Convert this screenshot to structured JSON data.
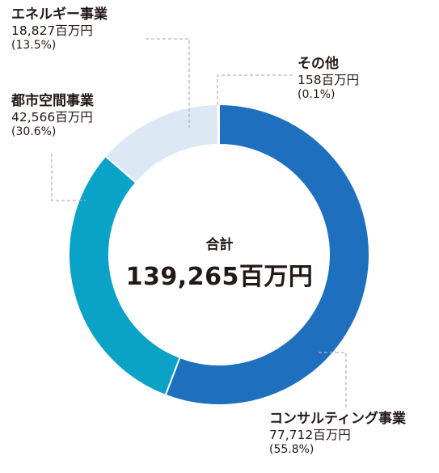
{
  "chart_data": {
    "type": "pie",
    "donut": true,
    "unit": "百万円",
    "total_label": "合計",
    "total_value": "139,265百万円",
    "segments": [
      {
        "name": "コンサルティング事業",
        "amount": "77,712百万円",
        "percent_label": "(55.8%)",
        "value": 77712,
        "color": "#1f6fbf"
      },
      {
        "name": "都市空間事業",
        "amount": "42,566百万円",
        "percent_label": "(30.6%)",
        "value": 42566,
        "color": "#0aa2c7"
      },
      {
        "name": "エネルギー事業",
        "amount": "18,827百万円",
        "percent_label": "(13.5%)",
        "value": 18827,
        "color": "#dce9f4"
      },
      {
        "name": "その他",
        "amount": "158百万円",
        "percent_label": "(0.1%)",
        "value": 158,
        "color": "#8c8c8c"
      }
    ]
  }
}
